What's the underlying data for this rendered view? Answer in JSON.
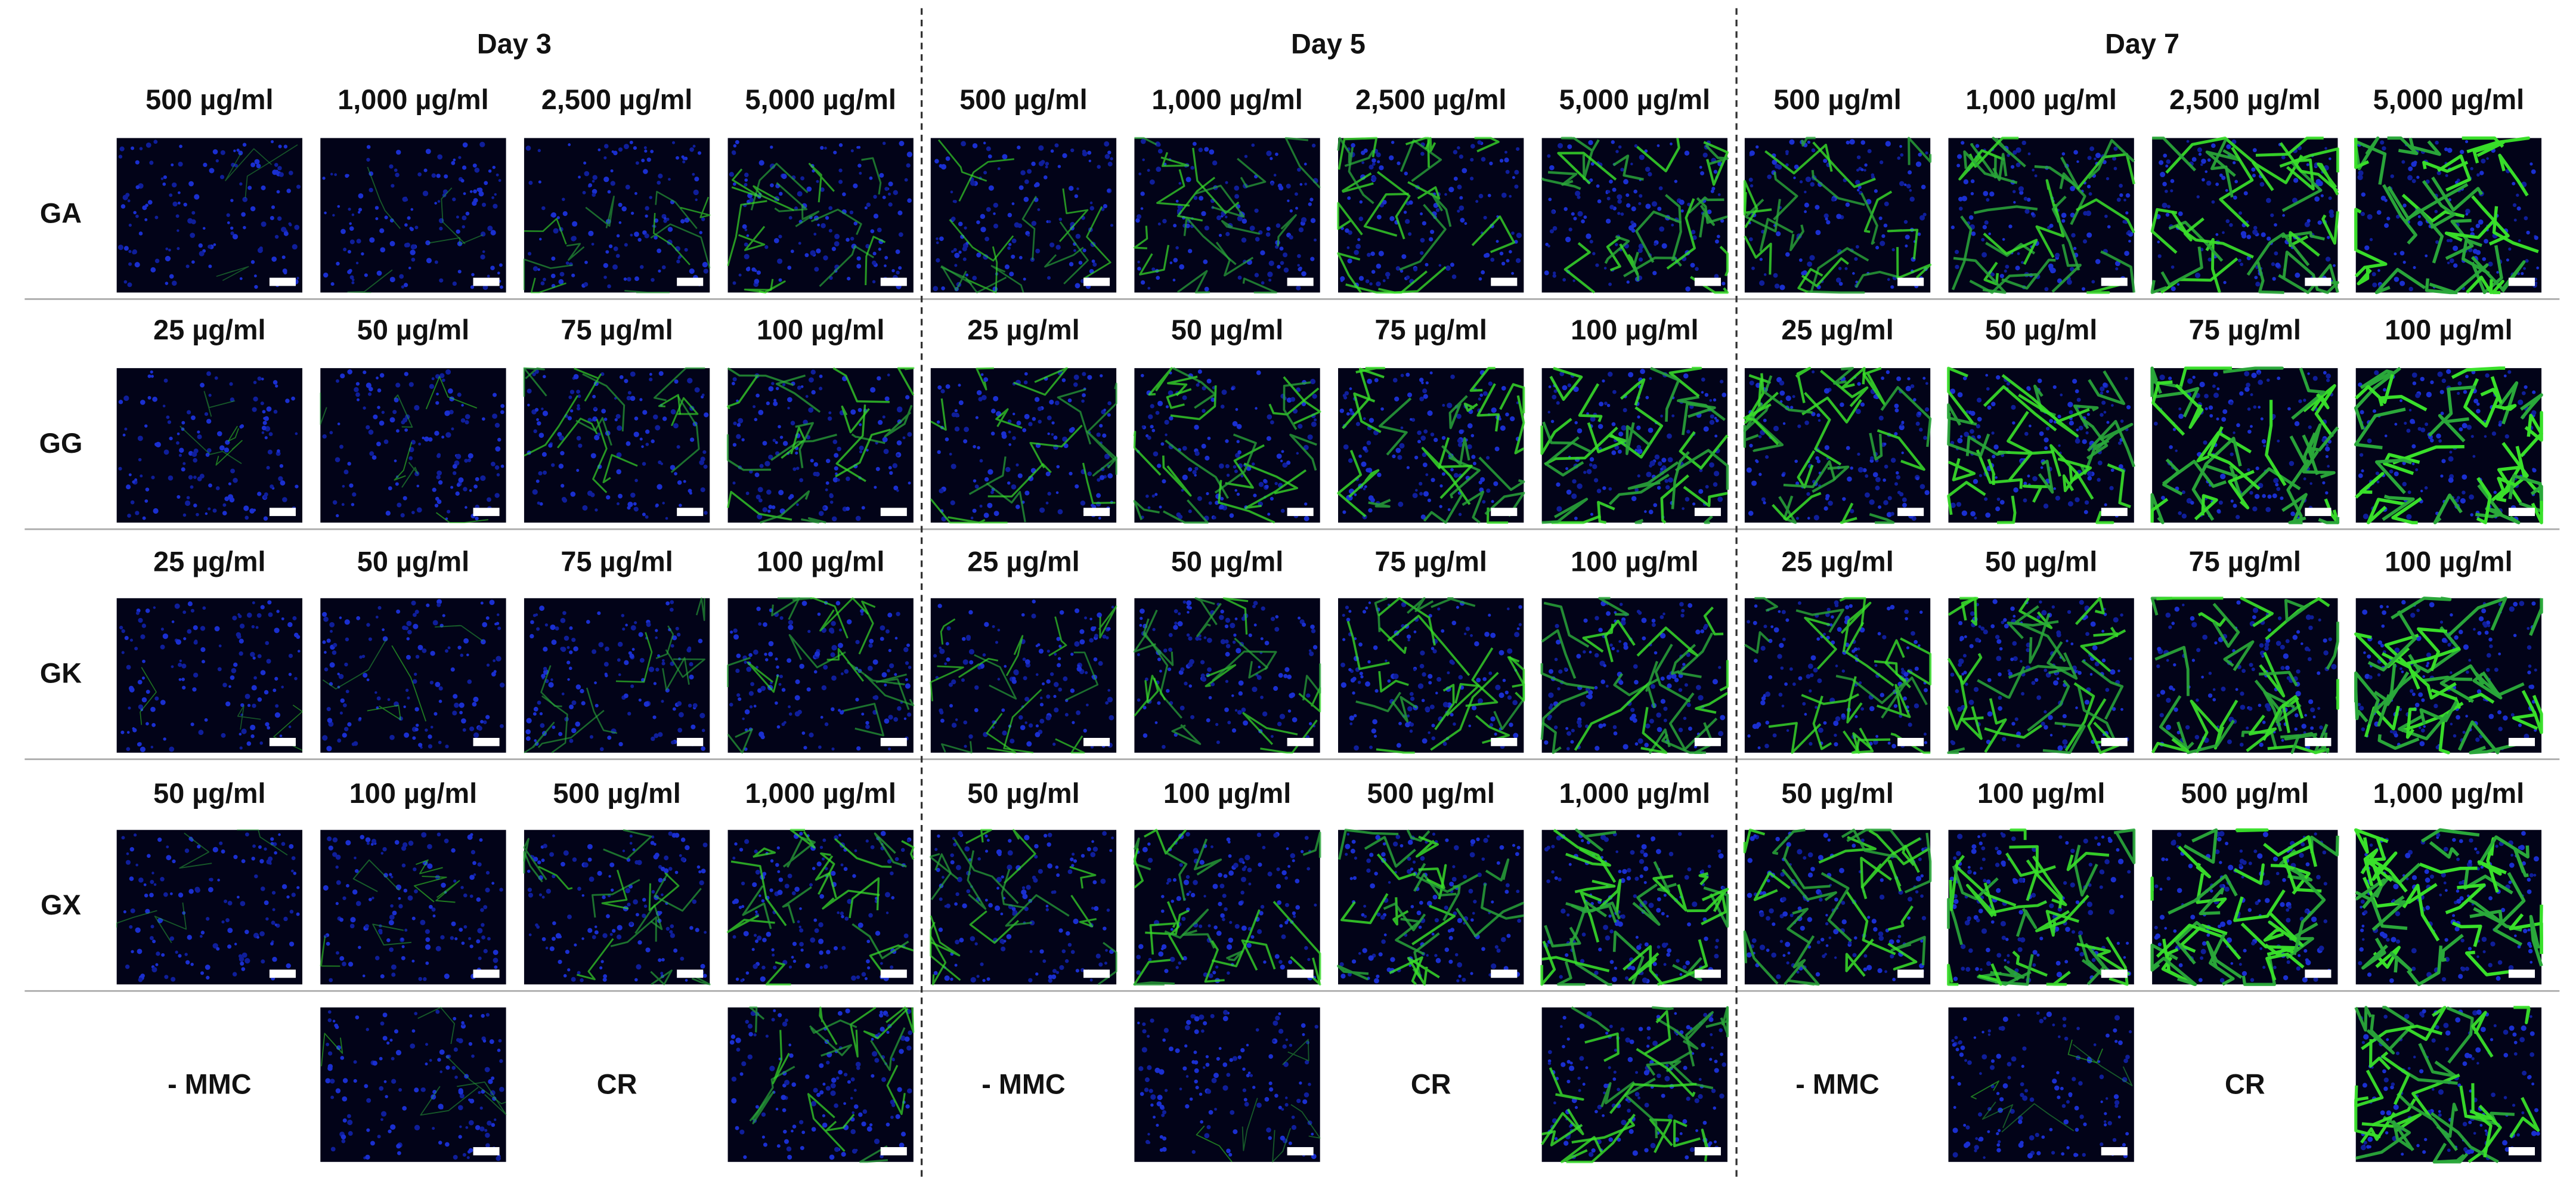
{
  "days": [
    "Day 3",
    "Day 5",
    "Day 7"
  ],
  "rows": [
    {
      "label": "GA",
      "days": [
        [
          "500 µg/ml",
          "1,000 µg/ml",
          "2,500 µg/ml",
          "5,000 µg/ml"
        ],
        [
          "500 µg/ml",
          "1,000 µg/ml",
          "2,500 µg/ml",
          "5,000 µg/ml"
        ],
        [
          "500 µg/ml",
          "1,000 µg/ml",
          "2,500 µg/ml",
          "5,000 µg/ml"
        ]
      ]
    },
    {
      "label": "GG",
      "days": [
        [
          "25 µg/ml",
          "50 µg/ml",
          "75 µg/ml",
          "100 µg/ml"
        ],
        [
          "25 µg/ml",
          "50 µg/ml",
          "75 µg/ml",
          "100 µg/ml"
        ],
        [
          "25 µg/ml",
          "50 µg/ml",
          "75 µg/ml",
          "100 µg/ml"
        ]
      ]
    },
    {
      "label": "GK",
      "days": [
        [
          "25 µg/ml",
          "50 µg/ml",
          "75 µg/ml",
          "100 µg/ml"
        ],
        [
          "25 µg/ml",
          "50 µg/ml",
          "75 µg/ml",
          "100 µg/ml"
        ],
        [
          "25 µg/ml",
          "50 µg/ml",
          "75 µg/ml",
          "100 µg/ml"
        ]
      ]
    },
    {
      "label": "GX",
      "days": [
        [
          "50 µg/ml",
          "100 µg/ml",
          "500 µg/ml",
          "1,000 µg/ml"
        ],
        [
          "50 µg/ml",
          "100 µg/ml",
          "500 µg/ml",
          "1,000 µg/ml"
        ],
        [
          "50 µg/ml",
          "100 µg/ml",
          "500 µg/ml",
          "1,000 µg/ml"
        ]
      ]
    }
  ],
  "controls": {
    "days": [
      [
        "- MMC",
        "CR"
      ],
      [
        "- MMC",
        "CR"
      ],
      [
        "- MMC",
        "CR"
      ]
    ]
  }
}
